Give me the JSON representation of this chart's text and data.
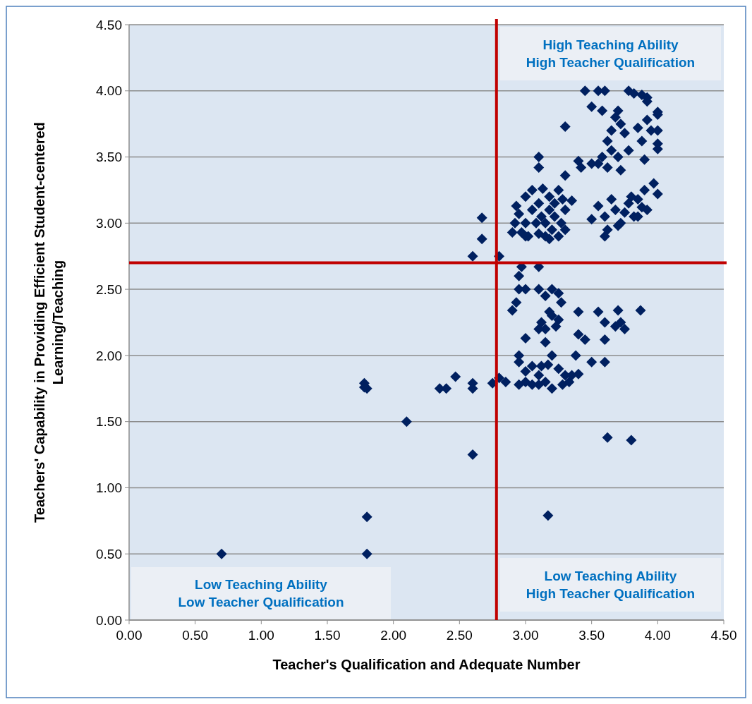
{
  "chart_data": {
    "type": "scatter",
    "xlabel": "Teacher's Qualification and Adequate Number",
    "ylabel": "Teachers' Capability in Providing Efficient Student-centered Learning/Teaching",
    "xlim": [
      0,
      4.5
    ],
    "ylim": [
      0,
      4.5
    ],
    "xticks": [
      {
        "value": 0,
        "label": "0.00"
      },
      {
        "value": 0.5,
        "label": "0.50"
      },
      {
        "value": 1,
        "label": "1.00"
      },
      {
        "value": 1.5,
        "label": "1.50"
      },
      {
        "value": 2,
        "label": "2.00"
      },
      {
        "value": 2.5,
        "label": "2.50"
      },
      {
        "value": 3,
        "label": "3.00"
      },
      {
        "value": 3.5,
        "label": "3.50"
      },
      {
        "value": 4,
        "label": "4.00"
      },
      {
        "value": 4.5,
        "label": "4.50"
      }
    ],
    "yticks": [
      {
        "value": 0,
        "label": "0.00"
      },
      {
        "value": 0.5,
        "label": "0.50"
      },
      {
        "value": 1,
        "label": "1.00"
      },
      {
        "value": 1.5,
        "label": "1.50"
      },
      {
        "value": 2,
        "label": "2.00"
      },
      {
        "value": 2.5,
        "label": "2.50"
      },
      {
        "value": 3,
        "label": "3.00"
      },
      {
        "value": 3.5,
        "label": "3.50"
      },
      {
        "value": 4,
        "label": "4.00"
      },
      {
        "value": 4.5,
        "label": "4.50"
      }
    ],
    "grid": "y",
    "marker": "diamond",
    "ref_lines": [
      {
        "axis": "x",
        "value": 2.78,
        "color": "#c00000"
      },
      {
        "axis": "y",
        "value": 2.7,
        "color": "#c00000"
      }
    ],
    "annotations": [
      "High Teaching Ability\nHigh Teacher Qualification",
      "Low Teaching Ability\nHigh Teacher Qualification",
      "Low Teaching Ability\nLow Teacher Qualification"
    ],
    "series": [
      {
        "color": "#002060",
        "x": [
          0.7,
          1.8,
          1.8,
          1.78,
          1.8,
          1.78,
          2.1,
          2.35,
          2.4,
          2.47,
          2.6,
          2.6,
          2.6,
          2.6,
          2.67,
          2.67,
          2.8,
          2.75,
          2.8,
          2.85,
          3.17,
          3.62,
          3.8,
          2.9,
          2.93,
          2.95,
          2.95,
          2.97,
          3.0,
          3.1,
          3.1,
          3.15,
          3.2,
          3.25,
          3.27,
          3.18,
          3.12,
          3.15,
          3.2,
          3.25,
          3.23,
          3.0,
          3.15,
          3.1,
          3.4,
          3.4,
          3.45,
          3.55,
          3.6,
          3.6,
          3.7,
          3.68,
          3.72,
          3.75,
          3.87,
          3.5,
          3.6,
          2.95,
          2.95,
          3.0,
          3.0,
          2.95,
          3.05,
          3.1,
          3.1,
          3.15,
          3.2,
          3.17,
          3.2,
          3.25,
          3.3,
          3.28,
          3.33,
          3.35,
          3.38,
          3.4,
          3.05,
          3.12,
          2.9,
          2.92,
          2.93,
          2.95,
          2.97,
          3.0,
          3.0,
          3.02,
          3.05,
          3.05,
          3.08,
          3.1,
          3.1,
          3.12,
          3.13,
          3.15,
          3.15,
          3.18,
          3.18,
          3.2,
          3.22,
          3.22,
          3.25,
          3.25,
          3.27,
          3.28,
          3.3,
          3.3,
          3.35,
          3.1,
          3.1,
          3.3,
          3.3,
          3.18,
          3.0,
          3.4,
          3.45,
          3.55,
          3.6,
          3.78,
          3.82,
          3.88,
          3.92,
          3.92,
          3.5,
          3.58,
          3.7,
          3.68,
          4.0,
          4.0,
          3.62,
          3.65,
          3.72,
          3.75,
          3.85,
          3.92,
          3.95,
          4.0,
          4.0,
          4.0,
          3.58,
          3.55,
          3.62,
          3.65,
          3.7,
          3.72,
          3.78,
          3.88,
          3.9,
          3.97,
          3.42,
          3.5,
          3.5,
          3.55,
          3.6,
          3.62,
          3.6,
          3.65,
          3.68,
          3.72,
          3.75,
          3.78,
          3.82,
          3.85,
          3.88,
          3.9,
          3.8,
          4.0,
          3.85,
          3.92,
          3.7
        ],
        "values": [
          0.5,
          0.5,
          0.78,
          1.79,
          1.75,
          1.76,
          1.5,
          1.75,
          1.75,
          1.84,
          1.79,
          1.75,
          1.25,
          2.75,
          2.88,
          3.04,
          2.75,
          1.79,
          1.83,
          1.8,
          0.79,
          1.38,
          1.36,
          2.34,
          2.4,
          2.5,
          2.6,
          2.67,
          2.5,
          2.67,
          2.5,
          2.45,
          2.5,
          2.47,
          2.4,
          2.33,
          2.25,
          2.2,
          2.3,
          2.27,
          2.22,
          2.13,
          2.1,
          2.2,
          2.33,
          2.16,
          2.12,
          2.33,
          2.25,
          2.12,
          2.34,
          2.22,
          2.25,
          2.2,
          2.34,
          1.95,
          1.95,
          2.0,
          1.95,
          1.88,
          1.8,
          1.78,
          1.78,
          1.85,
          1.78,
          1.8,
          1.75,
          1.93,
          2.0,
          1.9,
          1.85,
          1.78,
          1.8,
          1.85,
          2.0,
          1.86,
          1.92,
          1.92,
          2.93,
          3.0,
          3.13,
          3.07,
          2.93,
          3.2,
          3.0,
          2.9,
          3.1,
          3.25,
          3.0,
          2.92,
          3.15,
          3.05,
          3.26,
          3.0,
          2.9,
          3.1,
          3.2,
          2.95,
          3.05,
          3.15,
          2.9,
          3.25,
          3.0,
          3.18,
          2.95,
          3.1,
          3.17,
          3.42,
          3.5,
          3.36,
          3.73,
          2.88,
          2.9,
          3.47,
          4.0,
          4.0,
          4.0,
          4.0,
          3.98,
          3.97,
          3.95,
          3.92,
          3.88,
          3.85,
          3.85,
          3.8,
          3.84,
          3.82,
          3.62,
          3.7,
          3.75,
          3.68,
          3.72,
          3.78,
          3.7,
          3.7,
          3.6,
          3.56,
          3.5,
          3.45,
          3.42,
          3.55,
          3.5,
          3.4,
          3.55,
          3.62,
          3.48,
          3.3,
          3.42,
          3.45,
          3.03,
          3.13,
          3.05,
          2.95,
          2.9,
          3.18,
          3.1,
          3.0,
          3.08,
          3.15,
          3.05,
          3.05,
          3.12,
          3.25,
          3.2,
          3.22,
          3.18,
          3.1,
          2.98
        ]
      }
    ]
  }
}
